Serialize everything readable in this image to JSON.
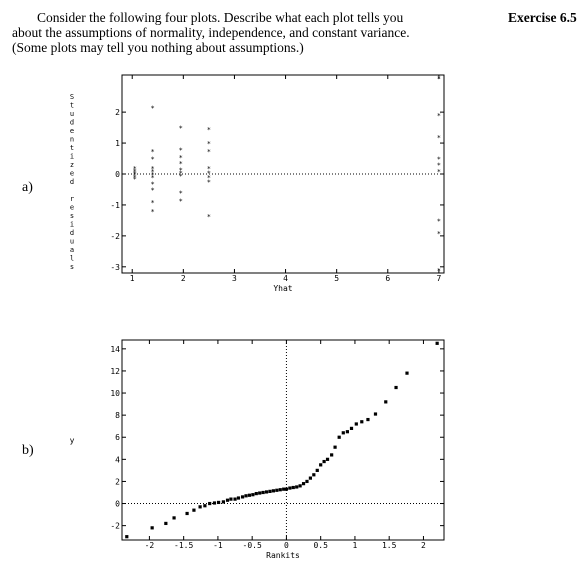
{
  "question": {
    "lines": [
      "Consider the following four plots.  Describe what each plot tells you",
      "about the assumptions of normality, independence, and constant variance.",
      "(Some plots may tell you nothing about assumptions.)"
    ],
    "exercise_label": "Exercise 6.5"
  },
  "plots": [
    {
      "label": "a)"
    },
    {
      "label": "b)"
    }
  ],
  "chart_data": [
    {
      "type": "scatter",
      "title": "",
      "xlabel": "Yhat",
      "ylabel": "Studentized residuals",
      "xlim": [
        0.8,
        7.1
      ],
      "ylim": [
        -3.2,
        3.2
      ],
      "x_ticks": [
        "1",
        "2",
        "3",
        "4",
        "5",
        "6",
        "7"
      ],
      "y_ticks": [
        "-3",
        "-2",
        "-1",
        "0",
        "1",
        "2"
      ],
      "reference_line_y": 0,
      "marker": "*",
      "points": [
        {
          "x": 1.05,
          "y": 0.2
        },
        {
          "x": 1.05,
          "y": 0.12
        },
        {
          "x": 1.05,
          "y": 0.05
        },
        {
          "x": 1.05,
          "y": 0.0
        },
        {
          "x": 1.05,
          "y": -0.08
        },
        {
          "x": 1.05,
          "y": -0.15
        },
        {
          "x": 1.4,
          "y": 2.15
        },
        {
          "x": 1.4,
          "y": 0.75
        },
        {
          "x": 1.4,
          "y": 0.5
        },
        {
          "x": 1.4,
          "y": 0.2
        },
        {
          "x": 1.4,
          "y": 0.1
        },
        {
          "x": 1.4,
          "y": 0.0
        },
        {
          "x": 1.4,
          "y": -0.1
        },
        {
          "x": 1.4,
          "y": -0.3
        },
        {
          "x": 1.4,
          "y": -0.5
        },
        {
          "x": 1.4,
          "y": -0.9
        },
        {
          "x": 1.4,
          "y": -1.2
        },
        {
          "x": 1.95,
          "y": 1.5
        },
        {
          "x": 1.95,
          "y": 0.8
        },
        {
          "x": 1.95,
          "y": 0.55
        },
        {
          "x": 1.95,
          "y": 0.35
        },
        {
          "x": 1.95,
          "y": 0.15
        },
        {
          "x": 1.95,
          "y": 0.05
        },
        {
          "x": 1.95,
          "y": -0.05
        },
        {
          "x": 1.95,
          "y": -0.6
        },
        {
          "x": 1.95,
          "y": -0.85
        },
        {
          "x": 2.5,
          "y": 1.45
        },
        {
          "x": 2.5,
          "y": 1.0
        },
        {
          "x": 2.5,
          "y": 0.75
        },
        {
          "x": 2.5,
          "y": 0.2
        },
        {
          "x": 2.5,
          "y": 0.05
        },
        {
          "x": 2.5,
          "y": -0.1
        },
        {
          "x": 2.5,
          "y": -0.25
        },
        {
          "x": 2.5,
          "y": -1.35
        },
        {
          "x": 7.0,
          "y": 3.1
        },
        {
          "x": 7.0,
          "y": 1.9
        },
        {
          "x": 7.0,
          "y": 1.2
        },
        {
          "x": 7.0,
          "y": 0.5
        },
        {
          "x": 7.0,
          "y": 0.3
        },
        {
          "x": 7.0,
          "y": 0.1
        },
        {
          "x": 7.0,
          "y": -1.5
        },
        {
          "x": 7.0,
          "y": -1.9
        },
        {
          "x": 7.0,
          "y": -3.1
        }
      ]
    },
    {
      "type": "scatter",
      "title": "",
      "xlabel": "Rankits",
      "ylabel": "y",
      "xlim": [
        -2.4,
        2.3
      ],
      "ylim": [
        -3.3,
        14.8
      ],
      "x_ticks": [
        "-2",
        "-1.5",
        "-1",
        "-0.5",
        "0",
        "0.5",
        "1",
        "1.5",
        "2"
      ],
      "y_ticks": [
        "-2",
        "0",
        "2",
        "4",
        "6",
        "8",
        "10",
        "12",
        "14"
      ],
      "reference_line_x": 0,
      "reference_line_y": 0,
      "marker": "square",
      "points": [
        {
          "x": -2.33,
          "y": -3.0
        },
        {
          "x": -1.96,
          "y": -2.2
        },
        {
          "x": -1.76,
          "y": -1.8
        },
        {
          "x": -1.64,
          "y": -1.3
        },
        {
          "x": -1.45,
          "y": -0.9
        },
        {
          "x": -1.35,
          "y": -0.6
        },
        {
          "x": -1.26,
          "y": -0.3
        },
        {
          "x": -1.19,
          "y": -0.2
        },
        {
          "x": -1.12,
          "y": 0.0
        },
        {
          "x": -1.05,
          "y": 0.05
        },
        {
          "x": -0.99,
          "y": 0.1
        },
        {
          "x": -0.92,
          "y": 0.15
        },
        {
          "x": -0.86,
          "y": 0.3
        },
        {
          "x": -0.81,
          "y": 0.4
        },
        {
          "x": -0.75,
          "y": 0.4
        },
        {
          "x": -0.7,
          "y": 0.5
        },
        {
          "x": -0.64,
          "y": 0.6
        },
        {
          "x": -0.59,
          "y": 0.7
        },
        {
          "x": -0.54,
          "y": 0.75
        },
        {
          "x": -0.49,
          "y": 0.8
        },
        {
          "x": -0.44,
          "y": 0.9
        },
        {
          "x": -0.39,
          "y": 0.95
        },
        {
          "x": -0.34,
          "y": 1.0
        },
        {
          "x": -0.29,
          "y": 1.05
        },
        {
          "x": -0.24,
          "y": 1.1
        },
        {
          "x": -0.19,
          "y": 1.15
        },
        {
          "x": -0.14,
          "y": 1.2
        },
        {
          "x": -0.09,
          "y": 1.25
        },
        {
          "x": -0.04,
          "y": 1.3
        },
        {
          "x": 0.0,
          "y": 1.3
        },
        {
          "x": 0.05,
          "y": 1.4
        },
        {
          "x": 0.1,
          "y": 1.45
        },
        {
          "x": 0.15,
          "y": 1.5
        },
        {
          "x": 0.2,
          "y": 1.6
        },
        {
          "x": 0.25,
          "y": 1.8
        },
        {
          "x": 0.3,
          "y": 2.0
        },
        {
          "x": 0.35,
          "y": 2.3
        },
        {
          "x": 0.4,
          "y": 2.6
        },
        {
          "x": 0.45,
          "y": 3.0
        },
        {
          "x": 0.5,
          "y": 3.5
        },
        {
          "x": 0.55,
          "y": 3.8
        },
        {
          "x": 0.6,
          "y": 4.0
        },
        {
          "x": 0.66,
          "y": 4.4
        },
        {
          "x": 0.71,
          "y": 5.1
        },
        {
          "x": 0.77,
          "y": 6.0
        },
        {
          "x": 0.83,
          "y": 6.4
        },
        {
          "x": 0.89,
          "y": 6.5
        },
        {
          "x": 0.95,
          "y": 6.8
        },
        {
          "x": 1.02,
          "y": 7.2
        },
        {
          "x": 1.1,
          "y": 7.4
        },
        {
          "x": 1.19,
          "y": 7.6
        },
        {
          "x": 1.3,
          "y": 8.1
        },
        {
          "x": 1.45,
          "y": 9.2
        },
        {
          "x": 1.6,
          "y": 10.5
        },
        {
          "x": 1.76,
          "y": 11.8
        },
        {
          "x": 2.2,
          "y": 14.5
        }
      ]
    }
  ]
}
